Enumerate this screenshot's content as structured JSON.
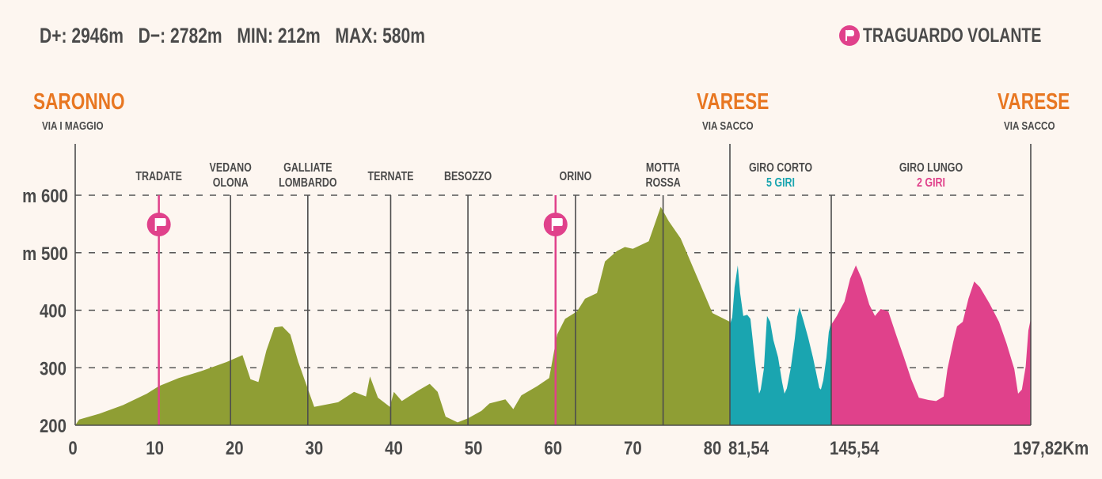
{
  "stats": {
    "d_plus": "D+: 2946m",
    "d_minus": "D−: 2782m",
    "min": "MIN: 212m",
    "max": "MAX: 580m"
  },
  "legend": {
    "label": "TRAGUARDO VOLANTE",
    "icon": "flag-icon",
    "color": "#e0418b"
  },
  "endpoints": [
    {
      "city": "SARONNO",
      "street": "VIA I MAGGIO"
    },
    {
      "city": "VARESE",
      "street": "VIA SACCO"
    },
    {
      "city": "VARESE",
      "street": "VIA SACCO"
    }
  ],
  "chart_data": {
    "type": "area",
    "y_axis_labels": [
      "m 600",
      "m 500",
      "400",
      "300",
      "200"
    ],
    "y_ticks": [
      600,
      500,
      400,
      300,
      200
    ],
    "ylim": [
      200,
      600
    ],
    "x_tick_labels": [
      "0",
      "10",
      "20",
      "30",
      "40",
      "50",
      "60",
      "70",
      "80",
      "81,54",
      "145,54",
      "197,82Km"
    ],
    "x_ticks": [
      0,
      10,
      20,
      30,
      40,
      50,
      60,
      70,
      80,
      81.54,
      145.54,
      197.82
    ],
    "grid": "dashed horizontal",
    "colors": {
      "main": "#8f9e34",
      "giro_corto": "#1aa5b0",
      "giro_lungo": "#e0418b",
      "city": "#e87722",
      "flag": "#e0418b"
    },
    "places": [
      {
        "km": 10.5,
        "lines": [
          "TRADATE"
        ],
        "flag": true
      },
      {
        "km": 19.5,
        "lines": [
          "VEDANO",
          "OLONA"
        ]
      },
      {
        "km": 29.2,
        "lines": [
          "GALLIATE",
          "LOMBARDO"
        ]
      },
      {
        "km": 39.6,
        "lines": [
          "TERNATE"
        ]
      },
      {
        "km": 49.3,
        "lines": [
          "BESOZZO"
        ]
      },
      {
        "km": 60.3,
        "lines": [],
        "flag": true
      },
      {
        "km": 62.8,
        "lines": [
          "ORINO"
        ]
      },
      {
        "km": 73.8,
        "lines": [
          "MOTTA",
          "ROSSA"
        ]
      }
    ],
    "circuits": [
      {
        "label": "GIRO CORTO",
        "laps": "5 GIRI",
        "start_km": 81.54,
        "end_km": 145.54,
        "color": "#1aa5b0"
      },
      {
        "label": "GIRO LUNGO",
        "laps": "2 GIRI",
        "start_km": 145.54,
        "end_km": 197.82,
        "color": "#e0418b"
      }
    ],
    "series": [
      {
        "segment": "main",
        "color": "#8f9e34",
        "points": [
          [
            0,
            200
          ],
          [
            0.5,
            210
          ],
          [
            3,
            220
          ],
          [
            6,
            235
          ],
          [
            9,
            255
          ],
          [
            10.5,
            268
          ],
          [
            13,
            282
          ],
          [
            16,
            295
          ],
          [
            19,
            310
          ],
          [
            21,
            322
          ],
          [
            22,
            280
          ],
          [
            23,
            275
          ],
          [
            24,
            330
          ],
          [
            25,
            370
          ],
          [
            26,
            372
          ],
          [
            27,
            358
          ],
          [
            28,
            310
          ],
          [
            30,
            232
          ],
          [
            33,
            240
          ],
          [
            35,
            258
          ],
          [
            36.5,
            250
          ],
          [
            37,
            285
          ],
          [
            38,
            248
          ],
          [
            39.5,
            232
          ],
          [
            40,
            258
          ],
          [
            41,
            242
          ],
          [
            43,
            260
          ],
          [
            44.5,
            272
          ],
          [
            45.5,
            258
          ],
          [
            46.5,
            215
          ],
          [
            48,
            205
          ],
          [
            49.3,
            212
          ],
          [
            51,
            225
          ],
          [
            52,
            238
          ],
          [
            54,
            245
          ],
          [
            55,
            228
          ],
          [
            56,
            252
          ],
          [
            58,
            268
          ],
          [
            59.5,
            282
          ],
          [
            60.5,
            358
          ],
          [
            61.5,
            385
          ],
          [
            63,
            398
          ],
          [
            64,
            420
          ],
          [
            65.5,
            430
          ],
          [
            66.5,
            485
          ],
          [
            68,
            503
          ],
          [
            69,
            510
          ],
          [
            70,
            507
          ],
          [
            72,
            520
          ],
          [
            73.5,
            580
          ],
          [
            74.5,
            555
          ],
          [
            76,
            525
          ],
          [
            78,
            460
          ],
          [
            80,
            395
          ],
          [
            81.54,
            380
          ]
        ]
      },
      {
        "segment": "giro_corto",
        "color": "#1aa5b0",
        "points": [
          [
            81.54,
            375
          ],
          [
            83,
            388
          ],
          [
            84.5,
            440
          ],
          [
            86.5,
            478
          ],
          [
            88,
            430
          ],
          [
            90,
            390
          ],
          [
            92.5,
            392
          ],
          [
            94.5,
            385
          ],
          [
            97,
            322
          ],
          [
            99,
            275
          ],
          [
            100,
            255
          ],
          [
            101,
            262
          ],
          [
            103,
            298
          ],
          [
            104,
            345
          ],
          [
            105,
            390
          ],
          [
            107,
            380
          ],
          [
            109,
            348
          ],
          [
            112,
            318
          ],
          [
            114.5,
            275
          ],
          [
            116,
            255
          ],
          [
            117.5,
            264
          ],
          [
            120,
            300
          ],
          [
            122.5,
            350
          ],
          [
            124,
            388
          ],
          [
            125.5,
            405
          ],
          [
            128,
            382
          ],
          [
            131,
            352
          ],
          [
            134,
            318
          ],
          [
            136.5,
            285
          ],
          [
            138,
            265
          ],
          [
            139,
            262
          ],
          [
            140.5,
            278
          ],
          [
            142.5,
            318
          ],
          [
            144,
            362
          ],
          [
            145.54,
            380
          ]
        ]
      },
      {
        "segment": "giro_lungo",
        "color": "#e0418b",
        "points": [
          [
            145.54,
            375
          ],
          [
            147,
            390
          ],
          [
            149,
            415
          ],
          [
            150.5,
            455
          ],
          [
            152,
            478
          ],
          [
            153.5,
            455
          ],
          [
            155.5,
            410
          ],
          [
            157,
            390
          ],
          [
            158.5,
            402
          ],
          [
            160.5,
            398
          ],
          [
            162.5,
            358
          ],
          [
            164.5,
            320
          ],
          [
            166.5,
            280
          ],
          [
            168.5,
            248
          ],
          [
            171,
            244
          ],
          [
            173,
            242
          ],
          [
            175,
            250
          ],
          [
            176,
            298
          ],
          [
            177.5,
            345
          ],
          [
            178.5,
            372
          ],
          [
            180,
            380
          ],
          [
            181.5,
            420
          ],
          [
            183,
            450
          ],
          [
            184.5,
            440
          ],
          [
            187,
            412
          ],
          [
            189.5,
            380
          ],
          [
            191.5,
            342
          ],
          [
            193.5,
            298
          ],
          [
            194.5,
            255
          ],
          [
            195.5,
            262
          ],
          [
            196.5,
            302
          ],
          [
            197.2,
            365
          ],
          [
            197.82,
            385
          ]
        ]
      }
    ]
  }
}
